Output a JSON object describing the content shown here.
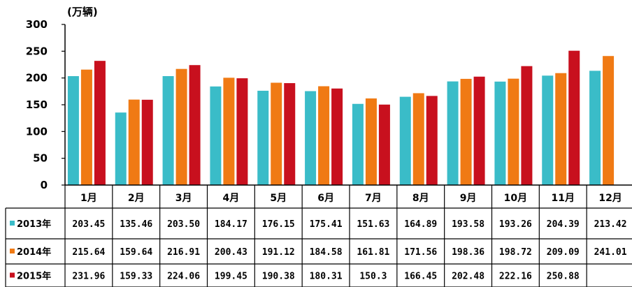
{
  "chart_data": {
    "type": "bar",
    "unit_label": "(万辆)",
    "categories": [
      "1月",
      "2月",
      "3月",
      "4月",
      "5月",
      "6月",
      "7月",
      "8月",
      "9月",
      "10月",
      "11月",
      "12月"
    ],
    "ylim": [
      0,
      300
    ],
    "yticks": [
      0,
      50,
      100,
      150,
      200,
      250,
      300
    ],
    "series": [
      {
        "name": "2013年",
        "color": "#3ABCC8",
        "values": [
          203.45,
          135.46,
          203.5,
          184.17,
          176.15,
          175.41,
          151.63,
          164.89,
          193.58,
          193.26,
          204.39,
          213.42
        ],
        "labels": [
          "203.45",
          "135.46",
          "203.50",
          "184.17",
          "176.15",
          "175.41",
          "151.63",
          "164.89",
          "193.58",
          "193.26",
          "204.39",
          "213.42"
        ]
      },
      {
        "name": "2014年",
        "color": "#F07A14",
        "values": [
          215.64,
          159.64,
          216.91,
          200.43,
          191.12,
          184.58,
          161.81,
          171.56,
          198.36,
          198.72,
          209.09,
          241.01
        ],
        "labels": [
          "215.64",
          "159.64",
          "216.91",
          "200.43",
          "191.12",
          "184.58",
          "161.81",
          "171.56",
          "198.36",
          "198.72",
          "209.09",
          "241.01"
        ]
      },
      {
        "name": "2015年",
        "color": "#C8101E",
        "values": [
          231.96,
          159.33,
          224.06,
          199.45,
          190.38,
          180.31,
          150.3,
          166.45,
          202.48,
          222.16,
          250.88,
          null
        ],
        "labels": [
          "231.96",
          "159.33",
          "224.06",
          "199.45",
          "190.38",
          "180.31",
          "150.3",
          "166.45",
          "202.48",
          "222.16",
          "250.88",
          ""
        ]
      }
    ]
  }
}
